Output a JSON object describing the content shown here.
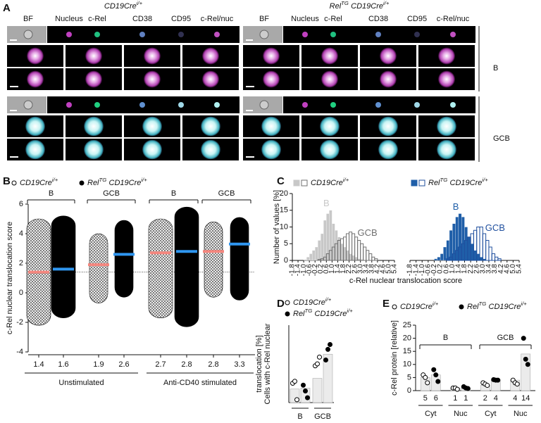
{
  "panel_labels": [
    "A",
    "B",
    "C",
    "D",
    "E"
  ],
  "panel_a": {
    "groups": [
      {
        "name": {
          "base": "CD19Cre",
          "sup": "i/+"
        }
      },
      {
        "name": {
          "pre": "Rel",
          "pre_sup": "TG",
          "base": "CD19Cre",
          "sup": "i/+"
        }
      }
    ],
    "columns": [
      "BF",
      "Nucleus",
      "c-Rel",
      "CD38",
      "CD95",
      "c-Rel/nuc"
    ],
    "rows": [
      "B",
      "GCB"
    ]
  },
  "chart_data": [
    {
      "type": "strip",
      "ylabel": "c-Rel nuclear translocation score",
      "ylim": [
        -4,
        6
      ],
      "yticks": [
        -4,
        -2,
        0,
        2,
        4,
        6
      ],
      "threshold": 1.4,
      "categories": [
        "B",
        "GCB",
        "B",
        "GCB"
      ],
      "conditions": [
        "Unstimulated",
        "Anti-CD40 stimulated"
      ],
      "series": [
        {
          "name": {
            "base": "CD19Cre",
            "sup": "i/+"
          },
          "marker": "open",
          "color": "#f4877f",
          "medians": [
            1.4,
            1.9,
            2.7,
            2.8
          ],
          "ranges": [
            [
              -2.2,
              5.0
            ],
            [
              -0.7,
              4.0
            ],
            [
              -1.7,
              5.0
            ],
            [
              -0.3,
              4.8
            ]
          ]
        },
        {
          "name": {
            "pre": "Rel",
            "pre_sup": "TG",
            "base": "CD19Cre",
            "sup": "i/+"
          },
          "marker": "filled",
          "color": "#2f96f0",
          "medians": [
            1.6,
            2.6,
            2.8,
            3.3
          ],
          "ranges": [
            [
              -1.7,
              5.2
            ],
            [
              -0.3,
              4.9
            ],
            [
              -2.3,
              5.8
            ],
            [
              -0.5,
              5.1
            ]
          ]
        }
      ]
    },
    {
      "type": "histogram",
      "legend_name": {
        "base": "CD19Cre",
        "sup": "i/+"
      },
      "ylabel": "Number of values [%]",
      "xlabel": "c-Rel nuclear translocation score",
      "xlim": [
        -1.8,
        5.4
      ],
      "ylim": [
        0,
        20
      ],
      "yticks": [
        0,
        5,
        10,
        15,
        20
      ],
      "xticks": [
        -1.8,
        -1.4,
        {
          "value": -1,
          "label": "-1.0"
        },
        -0.6,
        -0.2,
        0.2,
        0.6,
        {
          "value": 1,
          "label": "1.0"
        },
        1.4,
        1.8,
        2.2,
        2.6,
        {
          "value": 3,
          "label": "3.0"
        },
        3.4,
        3.8,
        4.2,
        4.6,
        {
          "value": 5,
          "label": "5.0"
        },
        5.4
      ],
      "bins": [
        -1.8,
        -1.6,
        -1.4,
        -1.2,
        -1,
        -0.8,
        -0.6,
        -0.4,
        -0.2,
        0,
        0.2,
        0.4,
        0.6,
        0.8,
        1,
        1.2,
        1.4,
        1.6,
        1.8,
        2,
        2.2,
        2.4,
        2.6,
        2.8,
        3,
        3.2,
        3.4,
        3.6,
        3.8,
        4,
        4.2,
        4.4,
        4.6,
        4.8,
        5,
        5.2,
        5.4
      ],
      "series": [
        {
          "name": "B",
          "style": "filled",
          "color": "#c8c8c8",
          "values": [
            0,
            0,
            0,
            0,
            0.3,
            1,
            2,
            3,
            4,
            6,
            8,
            12,
            14,
            15,
            11,
            9,
            7,
            5,
            4,
            3,
            2,
            1.5,
            1,
            0.5,
            0.3,
            0,
            0,
            0,
            0,
            0,
            0,
            0,
            0,
            0,
            0,
            0
          ]
        },
        {
          "name": "GCB",
          "style": "open",
          "color": "#707070",
          "values": [
            0,
            0,
            0,
            0,
            0,
            0,
            0,
            0,
            0,
            0.3,
            0.5,
            1,
            2,
            3,
            4,
            5,
            6,
            6.5,
            7,
            8,
            8.5,
            8,
            7,
            6,
            5,
            4,
            3,
            2,
            1,
            0.5,
            0,
            0,
            0,
            0,
            0,
            0
          ]
        }
      ]
    },
    {
      "type": "histogram",
      "legend_name": {
        "pre": "Rel",
        "pre_sup": "TG",
        "base": "CD19Cre",
        "sup": "i/+"
      },
      "xlim": [
        -1.8,
        5.4
      ],
      "ylim": [
        0,
        20
      ],
      "xticks": [
        -1.8,
        -1.4,
        {
          "value": -1,
          "label": "-1.0"
        },
        -0.6,
        -0.2,
        0.2,
        0.6,
        {
          "value": 1,
          "label": "1.0"
        },
        1.4,
        1.8,
        2.2,
        2.6,
        {
          "value": 3,
          "label": "3.0"
        },
        3.4,
        3.8,
        4.2,
        4.6,
        {
          "value": 5,
          "label": "5.0"
        },
        5.4
      ],
      "bins": [
        -1.8,
        -1.6,
        -1.4,
        -1.2,
        -1,
        -0.8,
        -0.6,
        -0.4,
        -0.2,
        0,
        0.2,
        0.4,
        0.6,
        0.8,
        1,
        1.2,
        1.4,
        1.6,
        1.8,
        2,
        2.2,
        2.4,
        2.6,
        2.8,
        3,
        3.2,
        3.4,
        3.6,
        3.8,
        4,
        4.2,
        4.4,
        4.6,
        4.8,
        5,
        5.2,
        5.4
      ],
      "series": [
        {
          "name": "B",
          "style": "filled",
          "color": "#1f5ea8",
          "values": [
            0,
            0,
            0,
            0,
            0,
            0,
            0,
            0,
            0.5,
            1,
            2,
            4,
            6,
            9,
            11,
            13,
            14,
            13,
            10,
            7,
            5,
            3,
            2,
            1,
            0.5,
            0,
            0,
            0,
            0,
            0,
            0,
            0,
            0,
            0,
            0,
            0
          ]
        },
        {
          "name": "GCB",
          "style": "open",
          "color": "#1f4f9e",
          "values": [
            0,
            0,
            0,
            0,
            0,
            0,
            0,
            0,
            0,
            0,
            0,
            0,
            0.5,
            1,
            2,
            3,
            4,
            5,
            6,
            7,
            8,
            9,
            10,
            10,
            8,
            6,
            4,
            2,
            1,
            0.5,
            0,
            0,
            0,
            0,
            0,
            0
          ]
        }
      ]
    },
    {
      "type": "bar",
      "ylabel": [
        "Cells with c-Rel nuclear",
        "translocation [%]"
      ],
      "ylim": [
        0,
        80
      ],
      "categories": [
        "B",
        "GCB"
      ],
      "series": [
        {
          "name": {
            "base": "CD19Cre",
            "sup": "i/+"
          },
          "marker": "open",
          "values": [
            14,
            25
          ],
          "points": [
            [
              20,
              22,
              3
            ],
            [
              38,
              40,
              47
            ]
          ]
        },
        {
          "name": {
            "pre": "Rel",
            "pre_sup": "TG",
            "base": "CD19Cre",
            "sup": "i/+"
          },
          "marker": "filled",
          "values": [
            15,
            50
          ],
          "points": [
            [
              18,
              12,
              5
            ],
            [
              44,
              55,
              60
            ]
          ]
        }
      ]
    },
    {
      "type": "bar",
      "ylabel": [
        "c-Rel protein [relative]"
      ],
      "ylim": [
        0,
        25
      ],
      "yticks": [
        0,
        5,
        10,
        15,
        20,
        25
      ],
      "show_values": true,
      "categories": [
        "Cyt",
        "Nuc",
        "Cyt",
        "Nuc"
      ],
      "groups": [
        "B",
        "GCB"
      ],
      "series": [
        {
          "name": {
            "base": "CD19Cre",
            "sup": "i/+"
          },
          "marker": "open",
          "values": [
            5,
            1,
            2,
            4
          ],
          "points": [
            [
              6,
              5,
              3
            ],
            [
              1,
              1,
              0.5
            ],
            [
              3,
              2.5,
              2
            ],
            [
              4,
              3,
              2.5
            ]
          ]
        },
        {
          "name": {
            "pre": "Rel",
            "pre_sup": "TG",
            "base": "CD19Cre",
            "sup": "i/+"
          },
          "marker": "filled",
          "values": [
            6,
            1,
            4,
            14
          ],
          "points": [
            [
              8,
              6,
              3.5
            ],
            [
              1.5,
              1,
              0.8
            ],
            [
              4.2,
              4,
              4
            ],
            [
              20,
              12,
              10
            ]
          ]
        }
      ]
    }
  ]
}
